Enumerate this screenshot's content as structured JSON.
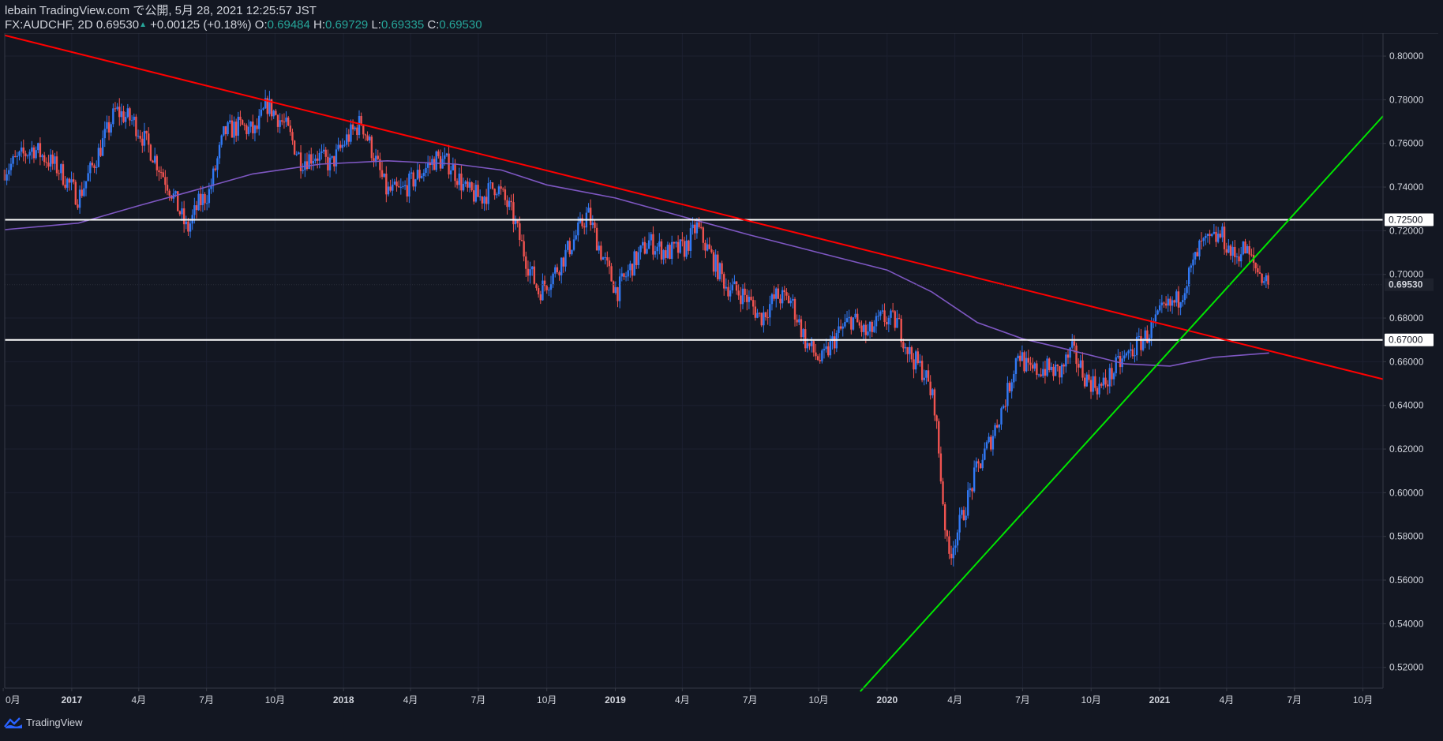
{
  "header": {
    "line1": "lebain TradingView.com で公開, 5月 28, 2021 12:25:57 JST",
    "symbol": "FX:AUDCHF, 2D",
    "last": "0.69530",
    "change": "+0.00125 (+0.18%)",
    "o_label": "O:",
    "o_value": "0.69484",
    "h_label": "H:",
    "h_value": "0.69729",
    "l_label": "L:",
    "l_value": "0.69335",
    "c_label": "C:",
    "c_value": "0.69530"
  },
  "footer": {
    "brand": "TradingView"
  },
  "colors": {
    "background": "#131722",
    "up": "#3179f5",
    "down": "#f05350",
    "ma": "#7e57c2",
    "resistance": "#ff0000",
    "support_trend": "#00e600",
    "horizontal": "#ffffff"
  },
  "chart_data": {
    "type": "candlestick",
    "symbol": "FX:AUDCHF",
    "interval": "2D",
    "ylim": [
      0.5105,
      0.8105
    ],
    "xlim": [
      "2016-10-03",
      "2021-10-28"
    ],
    "y_ticks": [
      "0.80000",
      "0.78000",
      "0.76000",
      "0.74000",
      "0.72000",
      "0.70000",
      "0.68000",
      "0.66000",
      "0.64000",
      "0.62000",
      "0.60000",
      "0.58000",
      "0.56000",
      "0.54000",
      "0.52000"
    ],
    "x_ticks": [
      {
        "label": "0月",
        "date": "2016-10-01"
      },
      {
        "label": "2017",
        "date": "2017-01-01",
        "bold": true
      },
      {
        "label": "4月",
        "date": "2017-04-01"
      },
      {
        "label": "7月",
        "date": "2017-07-01"
      },
      {
        "label": "10月",
        "date": "2017-10-01"
      },
      {
        "label": "2018",
        "date": "2018-01-01",
        "bold": true
      },
      {
        "label": "4月",
        "date": "2018-04-01"
      },
      {
        "label": "7月",
        "date": "2018-07-01"
      },
      {
        "label": "10月",
        "date": "2018-10-01"
      },
      {
        "label": "2019",
        "date": "2019-01-01",
        "bold": true
      },
      {
        "label": "4月",
        "date": "2019-04-01"
      },
      {
        "label": "7月",
        "date": "2019-07-01"
      },
      {
        "label": "10月",
        "date": "2019-10-01"
      },
      {
        "label": "2020",
        "date": "2020-01-01",
        "bold": true
      },
      {
        "label": "4月",
        "date": "2020-04-01"
      },
      {
        "label": "7月",
        "date": "2020-07-01"
      },
      {
        "label": "10月",
        "date": "2020-10-01"
      },
      {
        "label": "2021",
        "date": "2021-01-01",
        "bold": true
      },
      {
        "label": "4月",
        "date": "2021-04-01"
      },
      {
        "label": "7月",
        "date": "2021-07-01"
      },
      {
        "label": "10月",
        "date": "2021-10-01"
      }
    ],
    "price_path": [
      [
        "2016-10-03",
        0.748
      ],
      [
        "2016-11-10",
        0.758
      ],
      [
        "2016-12-15",
        0.748
      ],
      [
        "2017-01-10",
        0.735
      ],
      [
        "2017-02-05",
        0.755
      ],
      [
        "2017-03-01",
        0.775
      ],
      [
        "2017-03-25",
        0.77
      ],
      [
        "2017-04-20",
        0.755
      ],
      [
        "2017-05-15",
        0.738
      ],
      [
        "2017-06-05",
        0.72
      ],
      [
        "2017-06-20",
        0.732
      ],
      [
        "2017-07-05",
        0.738
      ],
      [
        "2017-07-25",
        0.765
      ],
      [
        "2017-08-15",
        0.768
      ],
      [
        "2017-09-05",
        0.765
      ],
      [
        "2017-09-20",
        0.778
      ],
      [
        "2017-10-15",
        0.768
      ],
      [
        "2017-11-05",
        0.752
      ],
      [
        "2017-11-25",
        0.755
      ],
      [
        "2017-12-15",
        0.75
      ],
      [
        "2018-01-05",
        0.762
      ],
      [
        "2018-01-25",
        0.77
      ],
      [
        "2018-02-10",
        0.755
      ],
      [
        "2018-02-28",
        0.738
      ],
      [
        "2018-03-20",
        0.738
      ],
      [
        "2018-04-10",
        0.745
      ],
      [
        "2018-05-05",
        0.753
      ],
      [
        "2018-05-25",
        0.75
      ],
      [
        "2018-06-15",
        0.738
      ],
      [
        "2018-07-05",
        0.735
      ],
      [
        "2018-07-25",
        0.741
      ],
      [
        "2018-08-15",
        0.728
      ],
      [
        "2018-09-05",
        0.705
      ],
      [
        "2018-09-20",
        0.692
      ],
      [
        "2018-10-10",
        0.7
      ],
      [
        "2018-11-05",
        0.715
      ],
      [
        "2018-11-25",
        0.728
      ],
      [
        "2018-12-15",
        0.708
      ],
      [
        "2019-01-03",
        0.692
      ],
      [
        "2019-01-25",
        0.705
      ],
      [
        "2019-02-15",
        0.715
      ],
      [
        "2019-03-10",
        0.71
      ],
      [
        "2019-04-05",
        0.712
      ],
      [
        "2019-04-20",
        0.722
      ],
      [
        "2019-05-10",
        0.708
      ],
      [
        "2019-05-30",
        0.695
      ],
      [
        "2019-06-25",
        0.69
      ],
      [
        "2019-07-15",
        0.68
      ],
      [
        "2019-08-05",
        0.69
      ],
      [
        "2019-08-25",
        0.688
      ],
      [
        "2019-09-15",
        0.668
      ],
      [
        "2019-10-05",
        0.66
      ],
      [
        "2019-10-25",
        0.672
      ],
      [
        "2019-11-15",
        0.68
      ],
      [
        "2019-12-05",
        0.672
      ],
      [
        "2019-12-25",
        0.68
      ],
      [
        "2020-01-15",
        0.678
      ],
      [
        "2020-02-01",
        0.663
      ],
      [
        "2020-02-20",
        0.655
      ],
      [
        "2020-03-05",
        0.64
      ],
      [
        "2020-03-15",
        0.6
      ],
      [
        "2020-03-23",
        0.57
      ],
      [
        "2020-04-10",
        0.588
      ],
      [
        "2020-04-30",
        0.61
      ],
      [
        "2020-05-20",
        0.625
      ],
      [
        "2020-06-10",
        0.645
      ],
      [
        "2020-06-25",
        0.665
      ],
      [
        "2020-07-10",
        0.655
      ],
      [
        "2020-07-30",
        0.657
      ],
      [
        "2020-08-20",
        0.655
      ],
      [
        "2020-09-05",
        0.665
      ],
      [
        "2020-09-25",
        0.652
      ],
      [
        "2020-10-15",
        0.648
      ],
      [
        "2020-11-05",
        0.658
      ],
      [
        "2020-11-25",
        0.665
      ],
      [
        "2020-12-15",
        0.672
      ],
      [
        "2021-01-05",
        0.683
      ],
      [
        "2021-01-25",
        0.688
      ],
      [
        "2021-02-10",
        0.7
      ],
      [
        "2021-02-25",
        0.713
      ],
      [
        "2021-03-10",
        0.715
      ],
      [
        "2021-03-25",
        0.718
      ],
      [
        "2021-04-10",
        0.708
      ],
      [
        "2021-04-25",
        0.712
      ],
      [
        "2021-05-10",
        0.703
      ],
      [
        "2021-05-28",
        0.6953
      ]
    ],
    "ma_path": [
      [
        "2016-10-03",
        0.7205
      ],
      [
        "2017-01-10",
        0.7235
      ],
      [
        "2017-04-01",
        0.7315
      ],
      [
        "2017-06-15",
        0.7385
      ],
      [
        "2017-09-01",
        0.746
      ],
      [
        "2017-12-01",
        0.7505
      ],
      [
        "2018-03-01",
        0.752
      ],
      [
        "2018-06-01",
        0.7505
      ],
      [
        "2018-08-01",
        0.7478
      ],
      [
        "2018-10-01",
        0.741
      ],
      [
        "2019-01-01",
        0.735
      ],
      [
        "2019-04-01",
        0.7265
      ],
      [
        "2019-07-01",
        0.718
      ],
      [
        "2019-10-01",
        0.71
      ],
      [
        "2020-01-01",
        0.702
      ],
      [
        "2020-03-01",
        0.692
      ],
      [
        "2020-05-01",
        0.678
      ],
      [
        "2020-07-01",
        0.6705
      ],
      [
        "2020-09-01",
        0.6655
      ],
      [
        "2020-11-15",
        0.659
      ],
      [
        "2021-01-15",
        0.658
      ],
      [
        "2021-03-15",
        0.662
      ],
      [
        "2021-05-28",
        0.664
      ]
    ],
    "horizontal_lines": [
      {
        "label": "0.72500",
        "value": 0.725
      },
      {
        "label": "0.67000",
        "value": 0.67
      }
    ],
    "trend_lines": [
      {
        "name": "resistance",
        "start": [
          "2016-10-03",
          0.8095
        ],
        "end": [
          "2021-10-28",
          0.652
        ]
      },
      {
        "name": "support",
        "start": [
          "2019-11-26",
          0.509
        ],
        "end": [
          "2021-10-28",
          0.7725
        ]
      }
    ],
    "last_price": {
      "label": "0.69530",
      "value": 0.6953
    }
  }
}
